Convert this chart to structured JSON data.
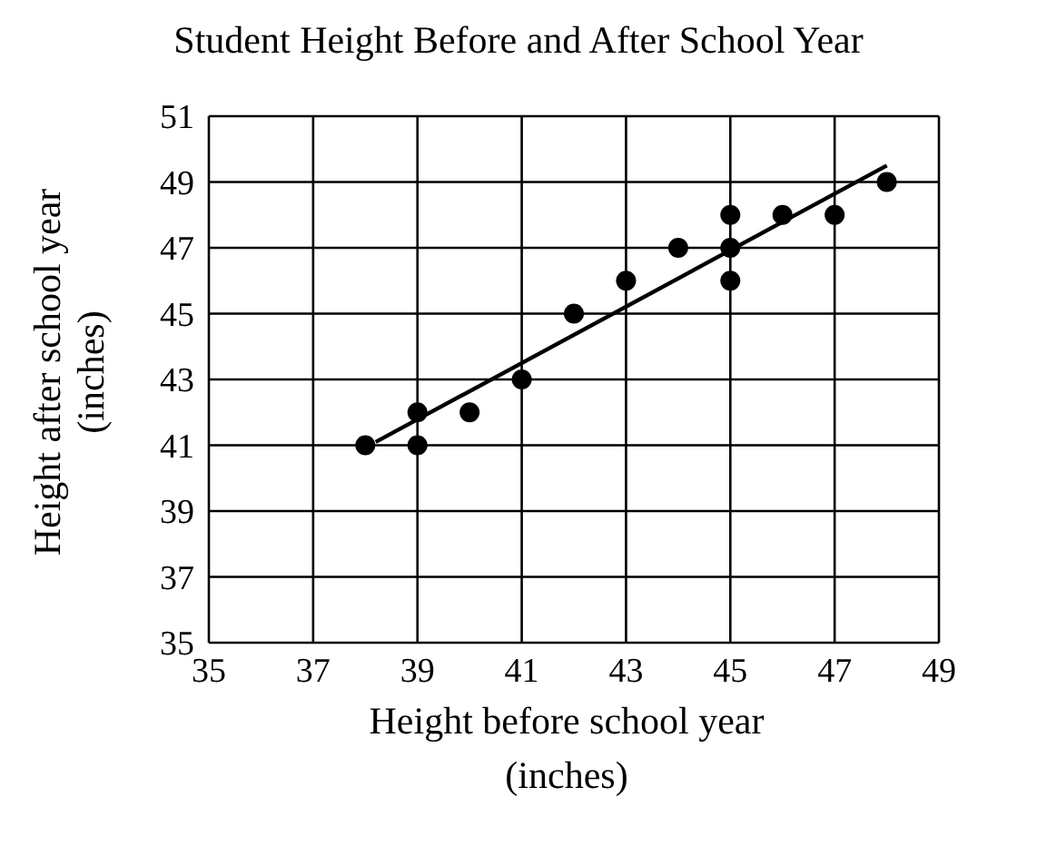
{
  "chart_data": {
    "type": "scatter",
    "title": "Student Height Before and After School Year",
    "xlabel": "Height before school year\n(inches)",
    "ylabel": "Height after school year\n(inches)",
    "xlim": [
      35,
      49
    ],
    "xticks": [
      35,
      37,
      39,
      41,
      43,
      45,
      47,
      49
    ],
    "ylim": [
      35,
      51
    ],
    "yticks": [
      35,
      37,
      39,
      41,
      43,
      45,
      47,
      49,
      51
    ],
    "grid": true,
    "legend": false,
    "series": [
      {
        "color": "#000000",
        "marker": "circle",
        "x": [
          38,
          39,
          39,
          40,
          41,
          42,
          43,
          44,
          45,
          45,
          45,
          46,
          47,
          48
        ],
        "values": [
          41,
          42,
          41,
          42,
          43,
          45,
          46,
          47,
          48,
          47,
          46,
          48,
          48,
          49
        ]
      },
      {
        "type": "line",
        "color": "#000000",
        "marker": "none",
        "line_style": "solid",
        "x": [
          38.2,
          48
        ],
        "values": [
          41.1,
          49.5
        ]
      }
    ]
  }
}
